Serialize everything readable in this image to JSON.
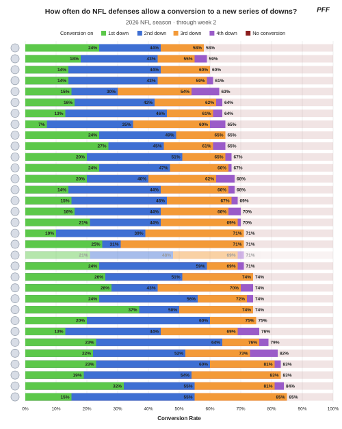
{
  "chart_data": {
    "type": "bar",
    "orientation": "horizontal",
    "overlap": true,
    "title": "How often do NFL defenses allow a conversion to a new series of downs?",
    "subtitle": "2026 NFL season · through week 2",
    "brand": "PFF",
    "legend_title": "Conversion on",
    "xlabel": "Conversion Rate",
    "categories": [
      null,
      null,
      null,
      null,
      null,
      null,
      null,
      null,
      null,
      null,
      null,
      null,
      null,
      null,
      null,
      null,
      null,
      null,
      null,
      null,
      null,
      null,
      null,
      null,
      null,
      null,
      null,
      null,
      null,
      null,
      null,
      null,
      null
    ],
    "faded_category_index": 19,
    "xlim": [
      0,
      100
    ],
    "xticks": [
      {
        "value": 0,
        "label": "0%"
      },
      {
        "value": 10,
        "label": "10%"
      },
      {
        "value": 20,
        "label": "20%"
      },
      {
        "value": 30,
        "label": "30%"
      },
      {
        "value": 40,
        "label": "40%"
      },
      {
        "value": 50,
        "label": "50%"
      },
      {
        "value": 60,
        "label": "60%"
      },
      {
        "value": 70,
        "label": "70%"
      },
      {
        "value": 80,
        "label": "80%"
      },
      {
        "value": 90,
        "label": "90%"
      },
      {
        "value": 100,
        "label": "100%"
      }
    ],
    "grid": true,
    "series": [
      {
        "name": "1st down",
        "color": "#5cc84a",
        "values": [
          24,
          18,
          14,
          14,
          15,
          16,
          13,
          7,
          24,
          27,
          20,
          24,
          20,
          14,
          15,
          16,
          21,
          10,
          25,
          21,
          24,
          26,
          28,
          24,
          37,
          20,
          13,
          23,
          22,
          23,
          19,
          32,
          15
        ],
        "value_labels": [
          "24%",
          "18%",
          "14%",
          "14%",
          "15%",
          "16%",
          "13%",
          "7%",
          "24%",
          "27%",
          "20%",
          "24%",
          "20%",
          "14%",
          "15%",
          "16%",
          "21%",
          "10%",
          "25%",
          "21%",
          "24%",
          "26%",
          "28%",
          "24%",
          "37%",
          "20%",
          "13%",
          "23%",
          "22%",
          "23%",
          "19%",
          "32%",
          "15%"
        ]
      },
      {
        "name": "2nd down",
        "color": "#3e6fd3",
        "values": [
          44,
          43,
          44,
          43,
          30,
          42,
          46,
          35,
          49,
          45,
          51,
          47,
          40,
          44,
          46,
          44,
          44,
          39,
          31,
          48,
          59,
          51,
          43,
          56,
          50,
          60,
          44,
          64,
          52,
          60,
          54,
          55,
          55
        ],
        "value_labels": [
          "44%",
          "43%",
          "44%",
          "43%",
          "30%",
          "42%",
          "46%",
          "35%",
          "49%",
          "45%",
          "51%",
          "47%",
          "40%",
          "44%",
          "46%",
          "44%",
          "44%",
          "39%",
          "31%",
          "48%",
          "59%",
          "51%",
          "43%",
          "56%",
          "50%",
          "60%",
          "44%",
          "64%",
          "52%",
          "60%",
          "54%",
          "55%",
          "55%"
        ]
      },
      {
        "name": "3rd down",
        "color": "#f39a38",
        "values": [
          58,
          55,
          60,
          59,
          54,
          62,
          61,
          60,
          65,
          61,
          65,
          66,
          62,
          66,
          67,
          66,
          69,
          71,
          71,
          69,
          69,
          74,
          70,
          72,
          74,
          75,
          69,
          76,
          73,
          81,
          83,
          81,
          85
        ],
        "value_labels": [
          "58%",
          "55%",
          "60%",
          "59%",
          "54%",
          "62%",
          "61%",
          "60%",
          "65%",
          "61%",
          "65%",
          "66%",
          "62%",
          "66%",
          "67%",
          "66%",
          "69%",
          "71%",
          "71%",
          "69%",
          "69%",
          "74%",
          "70%",
          "72%",
          "74%",
          "75%",
          "69%",
          "76%",
          "73%",
          "81%",
          "83%",
          "81%",
          "85%"
        ]
      },
      {
        "name": "4th down",
        "color": "#9a5bc8",
        "values": [
          58,
          59,
          60,
          61,
          63,
          64,
          64,
          65,
          65,
          65,
          67,
          67,
          68,
          68,
          69,
          70,
          70,
          71,
          71,
          71,
          71,
          74,
          74,
          74,
          74,
          75,
          76,
          79,
          82,
          83,
          83,
          84,
          85
        ],
        "value_labels": [
          "58%",
          "59%",
          "60%",
          "61%",
          "63%",
          "64%",
          "64%",
          "65%",
          "65%",
          "65%",
          "67%",
          "67%",
          "68%",
          "68%",
          "69%",
          "70%",
          "70%",
          "71%",
          "71%",
          "71%",
          "71%",
          "74%",
          "74%",
          "74%",
          "74%",
          "75%",
          "76%",
          "79%",
          "82%",
          "83%",
          "83%",
          "84%",
          "85%"
        ]
      },
      {
        "name": "No conversion",
        "color": "#8b1e1e",
        "values": [
          100,
          100,
          100,
          100,
          100,
          100,
          100,
          100,
          100,
          100,
          100,
          100,
          100,
          100,
          100,
          100,
          100,
          100,
          100,
          100,
          100,
          100,
          100,
          100,
          100,
          100,
          100,
          100,
          100,
          100,
          100,
          100,
          100
        ]
      }
    ]
  }
}
